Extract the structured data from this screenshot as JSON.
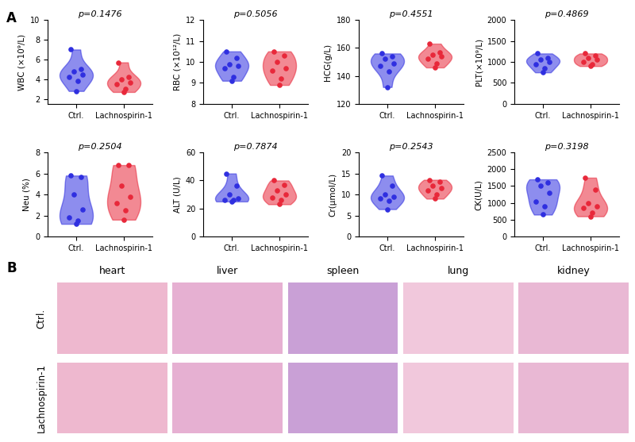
{
  "chart_data": [
    {
      "type": "violin",
      "ylabel": "WBC (×10⁹/L)",
      "annotation": "p=0.1476",
      "categories": [
        "Ctrl.",
        "Lachnospirin-1"
      ],
      "colors": [
        "#2f2fe0",
        "#e8283a"
      ],
      "values": [
        [
          7.0,
          5.0,
          4.8,
          4.5,
          4.2,
          3.8,
          2.8
        ],
        [
          5.7,
          4.2,
          4.0,
          3.7,
          3.5,
          3.0,
          2.7
        ]
      ],
      "ylim": [
        1.5,
        10
      ],
      "yticks": [
        2,
        4,
        6,
        8,
        10
      ]
    },
    {
      "type": "violin",
      "ylabel": "RBC (×10¹²/L)",
      "annotation": "p=0.5056",
      "categories": [
        "Ctrl.",
        "Lachnospirin-1"
      ],
      "colors": [
        "#2f2fe0",
        "#e8283a"
      ],
      "values": [
        [
          10.5,
          10.2,
          9.9,
          9.8,
          9.7,
          9.3,
          9.1
        ],
        [
          10.5,
          10.3,
          10.0,
          9.7,
          9.6,
          9.2,
          8.9
        ]
      ],
      "ylim": [
        8,
        12
      ],
      "yticks": [
        8,
        9,
        10,
        11,
        12
      ]
    },
    {
      "type": "violin",
      "ylabel": "HCG(g/L)",
      "annotation": "p=0.4551",
      "categories": [
        "Ctrl.",
        "Lachnospirin-1"
      ],
      "colors": [
        "#2f2fe0",
        "#e8283a"
      ],
      "values": [
        [
          156,
          154,
          152,
          149,
          147,
          143,
          132
        ],
        [
          163,
          157,
          155,
          154,
          152,
          149,
          146
        ]
      ],
      "ylim": [
        120,
        180
      ],
      "yticks": [
        120,
        140,
        160,
        180
      ]
    },
    {
      "type": "violin",
      "ylabel": "PLT(×10⁹/L)",
      "annotation": "p=0.4869",
      "categories": [
        "Ctrl.",
        "Lachnospirin-1"
      ],
      "colors": [
        "#2f2fe0",
        "#e8283a"
      ],
      "values": [
        [
          1200,
          1100,
          1050,
          1000,
          950,
          850,
          750
        ],
        [
          1200,
          1150,
          1100,
          1050,
          1000,
          950,
          900
        ]
      ],
      "ylim": [
        0,
        2000
      ],
      "yticks": [
        0,
        500,
        1000,
        1500,
        2000
      ]
    },
    {
      "type": "violin",
      "ylabel": "Neu (%)",
      "annotation": "p=0.2504",
      "categories": [
        "Ctrl.",
        "Lachnospirin-1"
      ],
      "colors": [
        "#2f2fe0",
        "#e8283a"
      ],
      "values": [
        [
          5.8,
          5.7,
          4.0,
          2.6,
          1.8,
          1.5,
          1.2
        ],
        [
          6.8,
          6.8,
          4.8,
          3.8,
          3.2,
          2.5,
          1.6
        ]
      ],
      "ylim": [
        0,
        8
      ],
      "yticks": [
        0,
        2,
        4,
        6,
        8
      ]
    },
    {
      "type": "violin",
      "ylabel": "ALT (U/L)",
      "annotation": "p=0.7874",
      "categories": [
        "Ctrl.",
        "Lachnospirin-1"
      ],
      "colors": [
        "#2f2fe0",
        "#e8283a"
      ],
      "values": [
        [
          45,
          36,
          30,
          27,
          26,
          26,
          25
        ],
        [
          40,
          37,
          33,
          30,
          28,
          26,
          23
        ]
      ],
      "ylim": [
        0,
        60
      ],
      "yticks": [
        0,
        20,
        40,
        60
      ]
    },
    {
      "type": "violin",
      "ylabel": "Cr(μmol/L)",
      "annotation": "p=0.2543",
      "categories": [
        "Ctrl.",
        "Lachnospirin-1"
      ],
      "colors": [
        "#2f2fe0",
        "#e8283a"
      ],
      "values": [
        [
          14.5,
          12,
          10,
          9.5,
          9,
          8.5,
          6.5
        ],
        [
          13.5,
          13,
          12,
          11.5,
          11,
          10,
          9
        ]
      ],
      "ylim": [
        0,
        20
      ],
      "yticks": [
        0,
        5,
        10,
        15,
        20
      ]
    },
    {
      "type": "violin",
      "ylabel": "CK(U/L)",
      "annotation": "p=0.3198",
      "categories": [
        "Ctrl.",
        "Lachnospirin-1"
      ],
      "colors": [
        "#2f2fe0",
        "#e8283a"
      ],
      "values": [
        [
          1700,
          1600,
          1500,
          1300,
          1050,
          900,
          650
        ],
        [
          1750,
          1400,
          1000,
          900,
          850,
          700,
          600
        ]
      ],
      "ylim": [
        0,
        2500
      ],
      "yticks": [
        0,
        500,
        1000,
        1500,
        2000,
        2500
      ]
    }
  ],
  "panel_labels": [
    "A",
    "B"
  ],
  "histology": {
    "columns": [
      "heart",
      "liver",
      "spleen",
      "lung",
      "kidney"
    ],
    "rows": [
      "Ctrl.",
      "Lachnospirin-1"
    ]
  }
}
